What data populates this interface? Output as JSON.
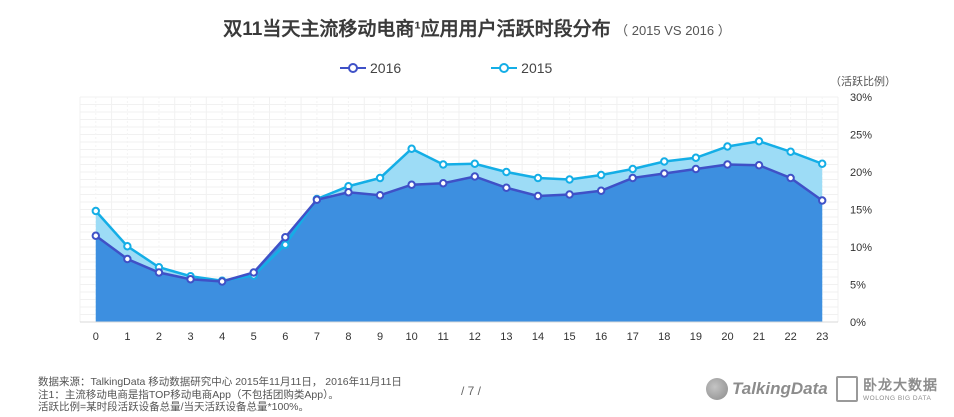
{
  "title": {
    "main": "双11当天主流移动电商¹应用用户活跃时段分布",
    "sub": "（ 2015 VS 2016 ）"
  },
  "unit_label": "（活跃比例）",
  "footer": {
    "line1": "数据来源：TalkingData 移动数据研究中心  2015年11月11日， 2016年11月11日",
    "line2": "注1：主流移动电商是指TOP移动电商App（不包括团购类App）。",
    "line3": "活跃比例=某时段活跃设备总量/当天活跃设备总量*100%。"
  },
  "page_number": "/ 7 /",
  "logos": {
    "talkingdata": "TalkingData",
    "wolong_cn": "卧龙大数据",
    "wolong_en": "WOLONG BIG DATA"
  },
  "chart_data": {
    "type": "area",
    "categories": [
      "0",
      "1",
      "2",
      "3",
      "4",
      "5",
      "6",
      "7",
      "8",
      "9",
      "10",
      "11",
      "12",
      "13",
      "14",
      "15",
      "16",
      "17",
      "18",
      "19",
      "20",
      "21",
      "22",
      "23"
    ],
    "y_ticks": [
      "0%",
      "5%",
      "10%",
      "15%",
      "20%",
      "25%",
      "30%"
    ],
    "ylim": [
      0,
      30
    ],
    "grid": true,
    "legend_position": "top-center",
    "series": [
      {
        "name": "2016",
        "color": "#3f51c7",
        "fill": "#3d8fe0",
        "values": [
          11.5,
          8.4,
          6.6,
          5.7,
          5.4,
          6.6,
          11.3,
          16.3,
          17.3,
          16.9,
          18.3,
          18.5,
          19.4,
          17.9,
          16.8,
          17.0,
          17.5,
          19.2,
          19.8,
          20.4,
          21.0,
          20.9,
          19.2,
          16.2
        ]
      },
      {
        "name": "2015",
        "color": "#14aee6",
        "fill": "#9ddcf6",
        "values": [
          14.8,
          10.1,
          7.3,
          6.1,
          5.5,
          6.2,
          10.3,
          16.4,
          18.1,
          19.2,
          23.1,
          21.0,
          21.1,
          20.0,
          19.2,
          19.0,
          19.6,
          20.4,
          21.4,
          21.9,
          23.4,
          24.1,
          22.7,
          21.1
        ]
      }
    ]
  }
}
